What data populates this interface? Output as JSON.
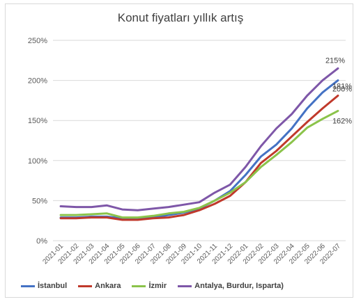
{
  "chart_data": {
    "type": "line",
    "title": "Konut fiyatları yıllık artış",
    "x": [
      "2021-01",
      "2021-02",
      "2021-03",
      "2021-04",
      "2021-05",
      "2021-06",
      "2021-07",
      "2021-08",
      "2021-09",
      "2021-10",
      "2021-11",
      "2021-12",
      "2022-01",
      "2022-02",
      "2022-03",
      "2022-04",
      "2022-05",
      "2022-06",
      "2022-07"
    ],
    "ylim": [
      0,
      250
    ],
    "yticks": [
      0,
      50,
      100,
      150,
      200,
      250
    ],
    "ytick_labels": [
      "0%",
      "50%",
      "100%",
      "150%",
      "200%",
      "250%"
    ],
    "grid": true,
    "legend_position": "bottom",
    "series": [
      {
        "name": "İstanbul",
        "color": "#4472c4",
        "values": [
          29,
          29,
          30,
          30,
          28,
          27,
          29,
          32,
          35,
          40,
          50,
          62,
          82,
          105,
          120,
          140,
          165,
          185,
          200
        ],
        "end_label": "200%"
      },
      {
        "name": "Ankara",
        "color": "#c0392b",
        "values": [
          28,
          28,
          29,
          29,
          26,
          26,
          28,
          29,
          32,
          38,
          46,
          56,
          73,
          97,
          112,
          130,
          148,
          165,
          181
        ],
        "end_label": "181%"
      },
      {
        "name": "İzmir",
        "color": "#8bc34a",
        "values": [
          32,
          32,
          33,
          34,
          29,
          29,
          31,
          34,
          36,
          41,
          50,
          60,
          73,
          92,
          107,
          123,
          141,
          152,
          162
        ],
        "end_label": "162%"
      },
      {
        "name": "Antalya, Burdur, Isparta)",
        "color": "#7e57a8",
        "values": [
          43,
          42,
          42,
          44,
          39,
          38,
          40,
          42,
          45,
          48,
          60,
          70,
          92,
          118,
          140,
          158,
          181,
          200,
          215
        ],
        "end_label": "215%"
      }
    ]
  }
}
